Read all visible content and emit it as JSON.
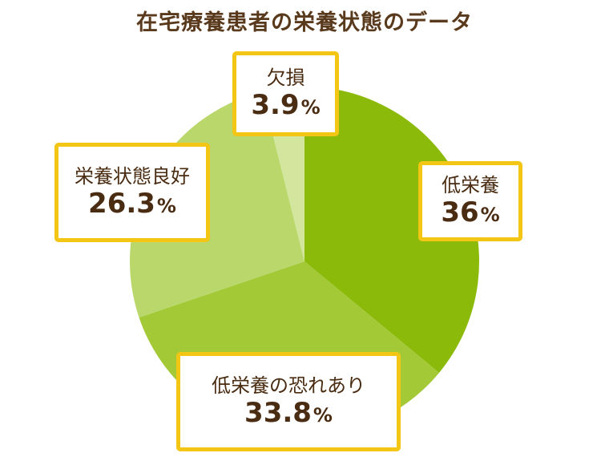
{
  "chart_data": {
    "type": "pie",
    "title": "在宅療養患者の栄養状態のデータ",
    "slices": [
      {
        "label": "低栄養",
        "value": 36,
        "display": "36",
        "unit": "%",
        "color": "#8bba0a"
      },
      {
        "label": "低栄養の恐れあり",
        "value": 33.8,
        "display": "33.8",
        "unit": "%",
        "color": "#a3c936"
      },
      {
        "label": "栄養状態良好",
        "value": 26.3,
        "display": "26.3",
        "unit": "%",
        "color": "#b9d76b"
      },
      {
        "label": "欠損",
        "value": 3.9,
        "display": "3.9",
        "unit": "%",
        "color": "#d4e69e"
      }
    ],
    "start": "12 o'clock",
    "direction": "clockwise",
    "legend": "none"
  }
}
